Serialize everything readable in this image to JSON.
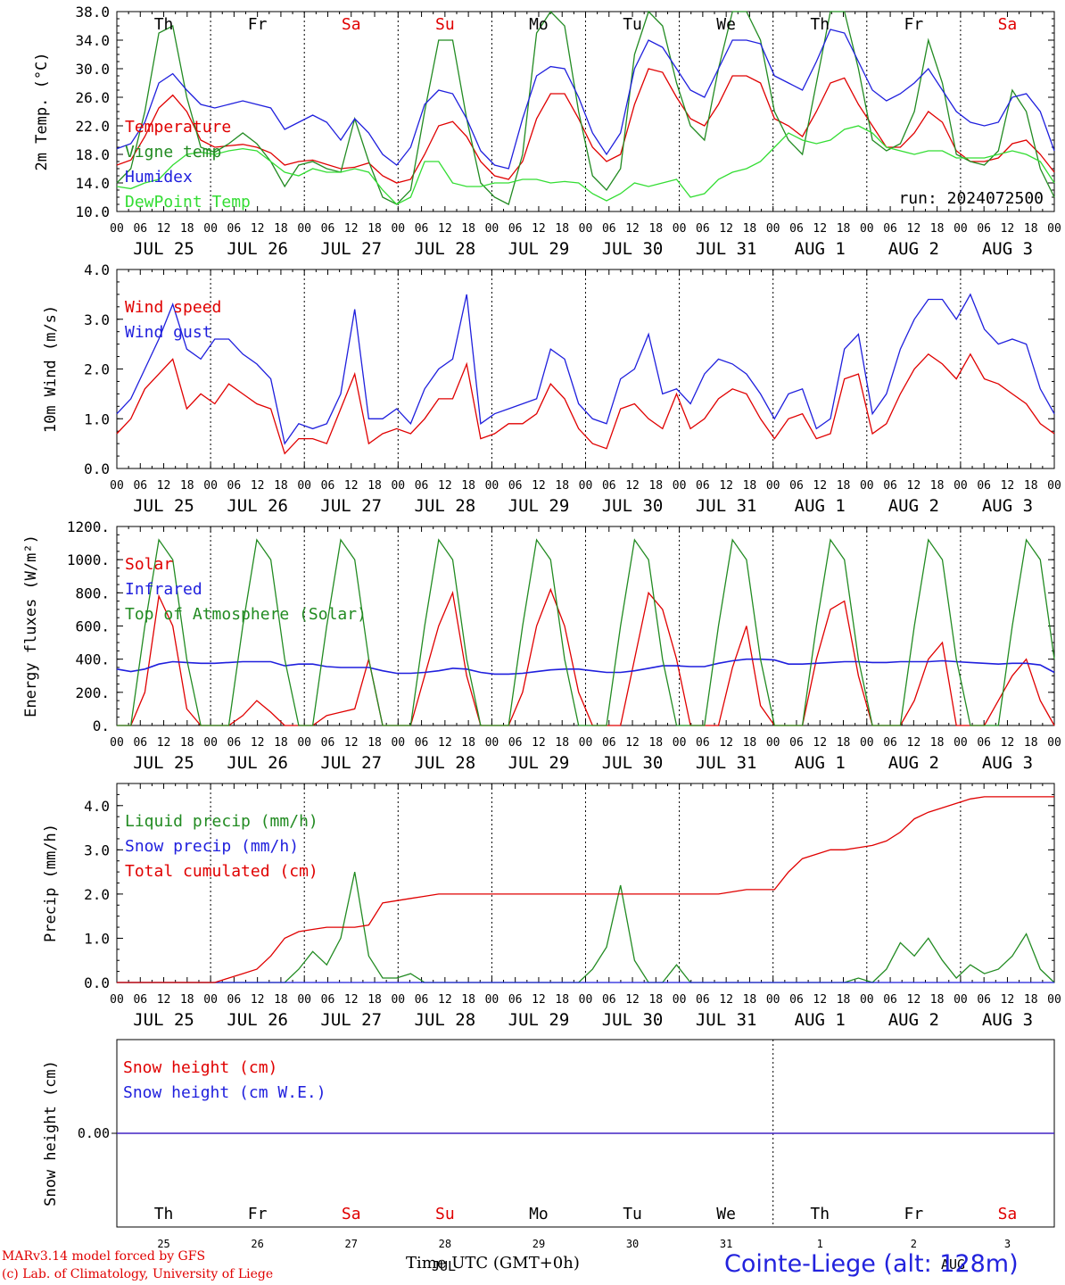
{
  "chart_data": [
    {
      "type": "line",
      "ylabel": "2m Temp. (°C)",
      "ylim": [
        10,
        38
      ],
      "yticks": [
        "10.0",
        "14.0",
        "18.0",
        "22.0",
        "26.0",
        "30.0",
        "34.0",
        "38.0"
      ],
      "run_label": "run: 2024072500",
      "series": [
        {
          "name": "Temperature",
          "color": "#e00000",
          "values": [
            16.5,
            17.2,
            20.5,
            24.5,
            26.3,
            24.0,
            20.0,
            19.0,
            19.2,
            19.4,
            19.0,
            18.2,
            16.5,
            17.0,
            17.2,
            16.6,
            16.0,
            16.2,
            16.8,
            15.0,
            14.0,
            14.5,
            18.0,
            22.0,
            22.6,
            20.5,
            17.0,
            15.0,
            14.5,
            17.0,
            23.0,
            26.5,
            26.5,
            23.0,
            19.0,
            17.0,
            18.0,
            25.0,
            30.0,
            29.5,
            26.0,
            23.0,
            22.0,
            25.0,
            29.0,
            29.0,
            28.0,
            23.0,
            22.0,
            20.5,
            24.0,
            28.0,
            28.7,
            25.0,
            22.0,
            19.0,
            19.0,
            21.0,
            24.0,
            22.5,
            18.5,
            17.0,
            17.0,
            17.5,
            19.5,
            20.0,
            18.0,
            15.5
          ]
        },
        {
          "name": "Vigne temp",
          "color": "#228b22",
          "values": [
            14.0,
            16.0,
            24.0,
            35.0,
            36.0,
            26.0,
            19.0,
            18.3,
            19.5,
            21.0,
            19.5,
            17.0,
            13.5,
            16.5,
            17.0,
            16.0,
            15.5,
            23.0,
            17.0,
            12.0,
            11.0,
            13.0,
            24.0,
            34.0,
            34.0,
            23.0,
            14.0,
            12.0,
            11.0,
            18.0,
            35.0,
            38.0,
            36.0,
            24.0,
            15.0,
            13.0,
            16.0,
            32.0,
            38.0,
            36.0,
            28.0,
            22.0,
            20.0,
            30.0,
            38.0,
            38.0,
            34.0,
            24.0,
            20.0,
            18.0,
            28.0,
            38.0,
            38.0,
            30.0,
            20.0,
            18.5,
            19.5,
            24.0,
            34.0,
            28.0,
            18.0,
            17.0,
            16.5,
            18.5,
            27.0,
            24.0,
            16.0,
            12.0
          ]
        },
        {
          "name": "Humidex",
          "color": "#1f1fdd",
          "values": [
            18.8,
            19.5,
            22.5,
            28.0,
            29.3,
            27.0,
            25.0,
            24.5,
            25.0,
            25.5,
            25.0,
            24.5,
            21.5,
            22.5,
            23.5,
            22.5,
            20.0,
            23.0,
            21.0,
            18.0,
            16.5,
            19.0,
            25.0,
            27.0,
            26.5,
            23.0,
            18.5,
            16.5,
            16.0,
            23.0,
            29.0,
            30.3,
            30.0,
            26.0,
            21.0,
            18.0,
            21.0,
            30.0,
            34.0,
            33.0,
            30.0,
            27.0,
            26.0,
            30.0,
            34.0,
            34.0,
            33.5,
            29.0,
            28.0,
            27.0,
            31.0,
            35.5,
            35.0,
            31.0,
            27.0,
            25.5,
            26.5,
            28.0,
            30.0,
            27.0,
            24.0,
            22.5,
            22.0,
            22.5,
            26.0,
            26.5,
            24.0,
            18.5
          ]
        },
        {
          "name": "DewPoint Temp",
          "color": "#33dd33",
          "values": [
            13.5,
            13.2,
            14.0,
            14.5,
            16.5,
            18.0,
            18.3,
            18.0,
            18.5,
            18.8,
            18.5,
            17.0,
            15.5,
            15.0,
            16.0,
            15.5,
            15.5,
            16.0,
            15.5,
            13.0,
            11.0,
            12.0,
            17.0,
            17.0,
            14.0,
            13.5,
            13.5,
            14.0,
            14.0,
            14.5,
            14.5,
            14.0,
            14.2,
            14.0,
            12.5,
            11.5,
            12.5,
            14.0,
            13.5,
            14.0,
            14.5,
            12.0,
            12.5,
            14.5,
            15.5,
            16.0,
            17.0,
            19.0,
            21.0,
            20.0,
            19.5,
            20.0,
            21.5,
            22.0,
            21.0,
            19.0,
            18.5,
            18.0,
            18.5,
            18.5,
            17.5,
            17.5,
            17.5,
            18.0,
            18.5,
            18.0,
            17.0,
            14.0
          ]
        }
      ]
    },
    {
      "type": "line",
      "ylabel": "10m Wind (m/s)",
      "ylim": [
        0,
        4
      ],
      "yticks": [
        "0.0",
        "1.0",
        "2.0",
        "3.0",
        "4.0"
      ],
      "series": [
        {
          "name": "Wind speed",
          "color": "#e00000",
          "values": [
            0.7,
            1.0,
            1.6,
            1.9,
            2.2,
            1.2,
            1.5,
            1.3,
            1.7,
            1.5,
            1.3,
            1.2,
            0.3,
            0.6,
            0.6,
            0.5,
            1.2,
            1.9,
            0.5,
            0.7,
            0.8,
            0.7,
            1.0,
            1.4,
            1.4,
            2.1,
            0.6,
            0.7,
            0.9,
            0.9,
            1.1,
            1.7,
            1.4,
            0.8,
            0.5,
            0.4,
            1.2,
            1.3,
            1.0,
            0.8,
            1.5,
            0.8,
            1.0,
            1.4,
            1.6,
            1.5,
            1.0,
            0.6,
            1.0,
            1.1,
            0.6,
            0.7,
            1.8,
            1.9,
            0.7,
            0.9,
            1.5,
            2.0,
            2.3,
            2.1,
            1.8,
            2.3,
            1.8,
            1.7,
            1.5,
            1.3,
            0.9,
            0.7
          ]
        },
        {
          "name": "Wind gust",
          "color": "#1f1fdd",
          "values": [
            1.1,
            1.4,
            2.0,
            2.6,
            3.3,
            2.4,
            2.2,
            2.6,
            2.6,
            2.3,
            2.1,
            1.8,
            0.5,
            0.9,
            0.8,
            0.9,
            1.5,
            3.2,
            1.0,
            1.0,
            1.2,
            0.9,
            1.6,
            2.0,
            2.2,
            3.5,
            0.9,
            1.1,
            1.2,
            1.3,
            1.4,
            2.4,
            2.2,
            1.3,
            1.0,
            0.9,
            1.8,
            2.0,
            2.7,
            1.5,
            1.6,
            1.3,
            1.9,
            2.2,
            2.1,
            1.9,
            1.5,
            1.0,
            1.5,
            1.6,
            0.8,
            1.0,
            2.4,
            2.7,
            1.1,
            1.5,
            2.4,
            3.0,
            3.4,
            3.4,
            3.0,
            3.5,
            2.8,
            2.5,
            2.6,
            2.5,
            1.6,
            1.1
          ]
        }
      ]
    },
    {
      "type": "line",
      "ylabel": "Energy fluxes (W/m²)",
      "ylim": [
        0,
        1200
      ],
      "yticks": [
        "0.",
        "200.",
        "400.",
        "600.",
        "800.",
        "1000.",
        "1200."
      ],
      "series": [
        {
          "name": "Solar",
          "color": "#e00000",
          "values": [
            0,
            0,
            200,
            780,
            600,
            100,
            0,
            0,
            0,
            60,
            150,
            80,
            0,
            0,
            0,
            60,
            80,
            100,
            400,
            0,
            0,
            0,
            300,
            600,
            800,
            300,
            0,
            0,
            0,
            200,
            600,
            820,
            600,
            200,
            0,
            0,
            0,
            400,
            800,
            700,
            400,
            0,
            0,
            0,
            350,
            600,
            120,
            0,
            0,
            0,
            400,
            700,
            750,
            300,
            0,
            0,
            0,
            150,
            400,
            500,
            0,
            0,
            0,
            150,
            300,
            400,
            150,
            0
          ]
        },
        {
          "name": "Infrared",
          "color": "#1f1fdd",
          "values": [
            340,
            325,
            340,
            370,
            385,
            380,
            375,
            375,
            380,
            385,
            385,
            385,
            360,
            370,
            370,
            355,
            350,
            350,
            350,
            330,
            315,
            315,
            320,
            330,
            345,
            340,
            320,
            310,
            310,
            315,
            325,
            335,
            340,
            340,
            330,
            320,
            320,
            330,
            345,
            360,
            360,
            355,
            355,
            375,
            390,
            400,
            400,
            395,
            370,
            370,
            375,
            380,
            385,
            385,
            380,
            380,
            385,
            385,
            385,
            390,
            385,
            380,
            375,
            370,
            375,
            375,
            365,
            320
          ]
        },
        {
          "name": "Top of Atmosphere (Solar)",
          "color": "#228b22",
          "values": [
            0,
            0,
            600,
            1120,
            1000,
            400,
            0,
            0,
            0,
            600,
            1120,
            1000,
            400,
            0,
            0,
            600,
            1120,
            1000,
            400,
            0,
            0,
            0,
            600,
            1120,
            1000,
            400,
            0,
            0,
            0,
            600,
            1120,
            1000,
            400,
            0,
            0,
            0,
            600,
            1120,
            1000,
            400,
            0,
            0,
            0,
            600,
            1120,
            1000,
            400,
            0,
            0,
            0,
            600,
            1120,
            1000,
            400,
            0,
            0,
            0,
            600,
            1120,
            1000,
            400,
            0,
            0,
            0,
            600,
            1120,
            1000,
            400
          ]
        }
      ]
    },
    {
      "type": "line",
      "ylabel": "Precip (mm/h)",
      "ylim": [
        0,
        4.5
      ],
      "yticks": [
        "0.0",
        "1.0",
        "2.0",
        "3.0",
        "4.0"
      ],
      "series": [
        {
          "name": "Liquid precip (mm/h)",
          "color": "#228b22",
          "values": [
            0,
            0,
            0,
            0,
            0,
            0,
            0,
            0,
            0,
            0,
            0.0,
            0.0,
            0.0,
            0.3,
            0.7,
            0.4,
            1.0,
            2.5,
            0.6,
            0.1,
            0.1,
            0.2,
            0.0,
            0.0,
            0.0,
            0.0,
            0.0,
            0.0,
            0.0,
            0.0,
            0.0,
            0.0,
            0.0,
            0.0,
            0.3,
            0.8,
            2.2,
            0.5,
            0.0,
            0.0,
            0.4,
            0.0,
            0.0,
            0.0,
            0.0,
            0.0,
            0.0,
            0.0,
            0.0,
            0.0,
            0.0,
            0.0,
            0.0,
            0.1,
            0.0,
            0.3,
            0.9,
            0.6,
            1.0,
            0.5,
            0.1,
            0.4,
            0.2,
            0.3,
            0.6,
            1.1,
            0.3,
            0.0
          ]
        },
        {
          "name": "Snow precip (mm/h)",
          "color": "#1f1fdd",
          "values": [
            0,
            0,
            0,
            0,
            0,
            0,
            0,
            0,
            0,
            0,
            0,
            0,
            0,
            0,
            0,
            0,
            0,
            0,
            0,
            0,
            0,
            0,
            0,
            0,
            0,
            0,
            0,
            0,
            0,
            0,
            0,
            0,
            0,
            0,
            0,
            0,
            0,
            0,
            0,
            0,
            0,
            0,
            0,
            0,
            0,
            0,
            0,
            0,
            0,
            0,
            0,
            0,
            0,
            0,
            0,
            0,
            0,
            0,
            0,
            0,
            0,
            0,
            0,
            0,
            0,
            0,
            0,
            0
          ]
        },
        {
          "name": "Total cumulated (cm)",
          "color": "#e00000",
          "values": [
            0,
            0,
            0,
            0,
            0,
            0,
            0,
            0,
            0.1,
            0.2,
            0.3,
            0.6,
            1.0,
            1.15,
            1.2,
            1.25,
            1.25,
            1.25,
            1.3,
            1.8,
            1.85,
            1.9,
            1.95,
            2.0,
            2.0,
            2.0,
            2.0,
            2.0,
            2.0,
            2.0,
            2.0,
            2.0,
            2.0,
            2.0,
            2.0,
            2.0,
            2.0,
            2.0,
            2.0,
            2.0,
            2.0,
            2.0,
            2.0,
            2.0,
            2.05,
            2.1,
            2.1,
            2.1,
            2.5,
            2.8,
            2.9,
            3.0,
            3.0,
            3.05,
            3.1,
            3.2,
            3.4,
            3.7,
            3.85,
            3.95,
            4.05,
            4.15,
            4.2,
            4.2,
            4.2,
            4.2,
            4.2,
            4.2
          ]
        }
      ]
    },
    {
      "type": "line",
      "ylabel": "Snow height (cm)",
      "ylim": [
        -1,
        1
      ],
      "yticks": [
        "0.00"
      ],
      "series": [
        {
          "name": "Snow height (cm)",
          "color": "#e00000",
          "values": [
            0,
            0
          ]
        },
        {
          "name": "Snow height (cm W.E.)",
          "color": "#1f1fdd",
          "values": [
            0,
            0
          ]
        }
      ]
    }
  ],
  "weekdays": [
    {
      "label": "Th",
      "color": "#000000"
    },
    {
      "label": "Fr",
      "color": "#000000"
    },
    {
      "label": "Sa",
      "color": "#e00000"
    },
    {
      "label": "Su",
      "color": "#e00000"
    },
    {
      "label": "Mo",
      "color": "#000000"
    },
    {
      "label": "Tu",
      "color": "#000000"
    },
    {
      "label": "We",
      "color": "#000000"
    },
    {
      "label": "Th",
      "color": "#000000"
    },
    {
      "label": "Fr",
      "color": "#000000"
    },
    {
      "label": "Sa",
      "color": "#e00000"
    }
  ],
  "date_labels": [
    "JUL 25",
    "JUL 26",
    "JUL 27",
    "JUL 28",
    "JUL 29",
    "JUL 30",
    "JUL 31",
    "AUG  1",
    "AUG  2",
    "AUG  3"
  ],
  "hour_labels": [
    "00",
    "06",
    "12",
    "18"
  ],
  "day_numbers": [
    "25",
    "26",
    "27",
    "28",
    "29",
    "30",
    "31",
    "1",
    "2",
    "3"
  ],
  "footer": {
    "model_line": "MARv3.14 model forced by GFS",
    "lab_line": "(c) Lab. of Climatology, University of Liege",
    "time_axis": "Time UTC (GMT+0h)",
    "time_axis_overlap": "JUL",
    "aug_overlap": "AUG",
    "station": "Cointe-Liege (alt: 128m)"
  }
}
